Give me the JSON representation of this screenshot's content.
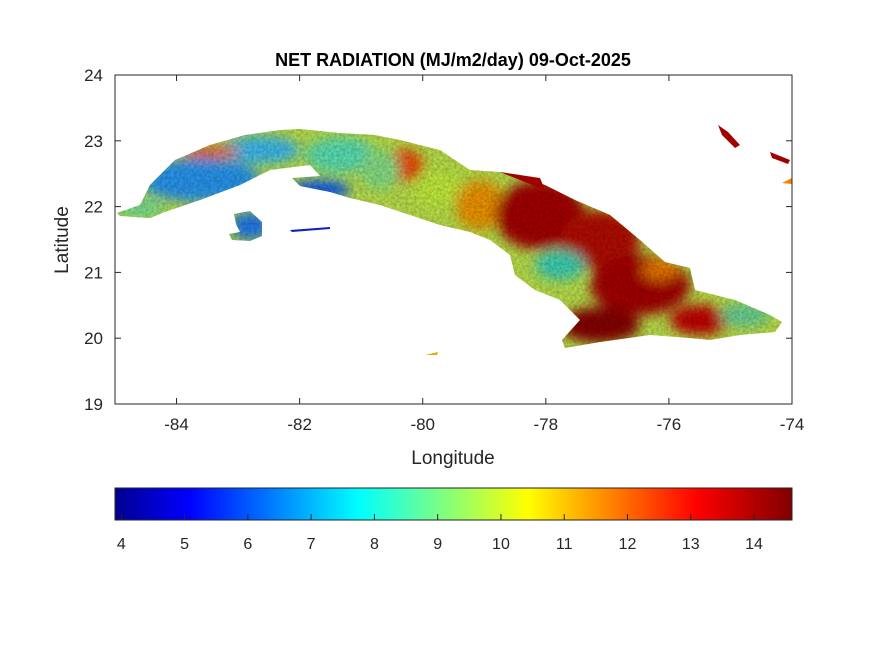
{
  "title": "NET RADIATION (MJ/m2/day) 09-Oct-2025",
  "xlabel": "Longitude",
  "ylabel": "Latitude",
  "map": {
    "region": "Cuba",
    "xlim": [
      -85,
      -74
    ],
    "ylim": [
      19,
      24
    ],
    "xticks": [
      "-84",
      "-82",
      "-80",
      "-78",
      "-76",
      "-74"
    ],
    "yticks": [
      "19",
      "20",
      "21",
      "22",
      "23",
      "24"
    ],
    "xtick_values": [
      -84,
      -82,
      -80,
      -78,
      -76,
      -74
    ],
    "ytick_values": [
      19,
      20,
      21,
      22,
      23,
      24
    ]
  },
  "colorbar": {
    "colormap": "jet",
    "range": [
      3.9,
      14.6
    ],
    "ticks": [
      "4",
      "5",
      "6",
      "7",
      "8",
      "9",
      "10",
      "11",
      "12",
      "13",
      "14"
    ],
    "tick_values": [
      4,
      5,
      6,
      7,
      8,
      9,
      10,
      11,
      12,
      13,
      14
    ],
    "colors": [
      "#00008f",
      "#0000ff",
      "#00ffff",
      "#ffff00",
      "#ff0000",
      "#800000"
    ]
  }
}
